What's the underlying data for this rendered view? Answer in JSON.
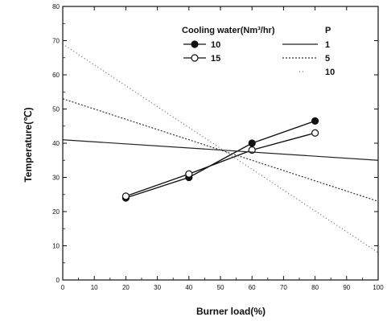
{
  "chart_data": {
    "type": "line",
    "xlabel": "Burner load(%)",
    "ylabel": "Temperature(℃)",
    "xlim": [
      0,
      100
    ],
    "ylim": [
      0,
      80
    ],
    "x_ticks": [
      0,
      10,
      20,
      30,
      40,
      50,
      60,
      70,
      80,
      90,
      100
    ],
    "y_ticks": [
      0,
      10,
      20,
      30,
      40,
      50,
      60,
      70,
      80
    ],
    "grid": false,
    "legend_position": "top-right",
    "legend": {
      "cooling_title": "Cooling water(Nm³/hr)",
      "p_title": "P"
    },
    "series": [
      {
        "name": "10",
        "group": "cooling_water",
        "marker": "filled-circle",
        "x": [
          20,
          40,
          60,
          80
        ],
        "y": [
          24,
          30,
          40,
          46.5
        ]
      },
      {
        "name": "15",
        "group": "cooling_water",
        "marker": "open-circle",
        "x": [
          20,
          40,
          60,
          80
        ],
        "y": [
          24.5,
          31,
          38,
          43
        ]
      },
      {
        "name": "1",
        "group": "P",
        "style": "solid",
        "x": [
          0,
          100
        ],
        "y": [
          41,
          35
        ]
      },
      {
        "name": "5",
        "group": "P",
        "style": "dashed",
        "x": [
          0,
          100
        ],
        "y": [
          53,
          23
        ]
      },
      {
        "name": "10",
        "group": "P",
        "style": "dotted",
        "x": [
          0,
          100
        ],
        "y": [
          69,
          8
        ]
      }
    ]
  }
}
